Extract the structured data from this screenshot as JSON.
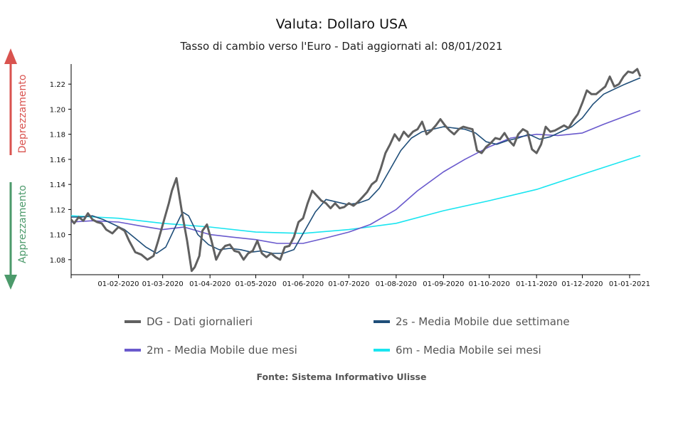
{
  "chart_data": {
    "type": "line",
    "title": "Valuta: Dollaro USA",
    "subtitle": "Tasso di cambio verso l'Euro - Dati aggiornati al: 08/01/2021",
    "source": "Fonte: Sistema Informativo Ulisse",
    "side_labels": {
      "up": "Deprezzamento",
      "down": "Apprezzamento",
      "up_color": "#d9534f",
      "down_color": "#4c9a6b"
    },
    "xlim": [
      "2020-01-01",
      "2021-01-08"
    ],
    "ylim": [
      1.068,
      1.236
    ],
    "x_ticks": [
      {
        "date": "2020-02-01",
        "label": "01-02-2020"
      },
      {
        "date": "2020-03-01",
        "label": "01-03-2020"
      },
      {
        "date": "2020-04-01",
        "label": "01-04-2020"
      },
      {
        "date": "2020-05-01",
        "label": "01-05-2020"
      },
      {
        "date": "2020-06-01",
        "label": "01-06-2020"
      },
      {
        "date": "2020-07-01",
        "label": "01-07-2020"
      },
      {
        "date": "2020-08-01",
        "label": "01-08-2020"
      },
      {
        "date": "2020-09-01",
        "label": "01-09-2020"
      },
      {
        "date": "2020-10-01",
        "label": "01-10-2020"
      },
      {
        "date": "2020-11-01",
        "label": "01-11-2020"
      },
      {
        "date": "2020-12-01",
        "label": "01-12-2020"
      },
      {
        "date": "2021-01-01",
        "label": "01-01-2021"
      }
    ],
    "y_ticks": [
      {
        "value": 1.08,
        "label": "1.08"
      },
      {
        "value": 1.1,
        "label": "1.10"
      },
      {
        "value": 1.12,
        "label": "1.12"
      },
      {
        "value": 1.14,
        "label": "1.14"
      },
      {
        "value": 1.16,
        "label": "1.16"
      },
      {
        "value": 1.18,
        "label": "1.18"
      },
      {
        "value": 1.2,
        "label": "1.20"
      },
      {
        "value": 1.22,
        "label": "1.22"
      }
    ],
    "series": [
      {
        "name": "DG - Dati giornalieri",
        "color": "#606060",
        "points": [
          [
            "2020-01-01",
            1.112
          ],
          [
            "2020-01-03",
            1.109
          ],
          [
            "2020-01-06",
            1.114
          ],
          [
            "2020-01-09",
            1.111
          ],
          [
            "2020-01-12",
            1.117
          ],
          [
            "2020-01-15",
            1.112
          ],
          [
            "2020-01-18",
            1.11
          ],
          [
            "2020-01-21",
            1.109
          ],
          [
            "2020-01-24",
            1.104
          ],
          [
            "2020-01-28",
            1.101
          ],
          [
            "2020-02-01",
            1.106
          ],
          [
            "2020-02-05",
            1.103
          ],
          [
            "2020-02-08",
            1.095
          ],
          [
            "2020-02-12",
            1.086
          ],
          [
            "2020-02-16",
            1.084
          ],
          [
            "2020-02-20",
            1.08
          ],
          [
            "2020-02-24",
            1.083
          ],
          [
            "2020-02-27",
            1.095
          ],
          [
            "2020-03-02",
            1.112
          ],
          [
            "2020-03-05",
            1.125
          ],
          [
            "2020-03-07",
            1.135
          ],
          [
            "2020-03-10",
            1.145
          ],
          [
            "2020-03-12",
            1.13
          ],
          [
            "2020-03-14",
            1.115
          ],
          [
            "2020-03-17",
            1.095
          ],
          [
            "2020-03-20",
            1.071
          ],
          [
            "2020-03-22",
            1.074
          ],
          [
            "2020-03-25",
            1.083
          ],
          [
            "2020-03-27",
            1.103
          ],
          [
            "2020-03-30",
            1.108
          ],
          [
            "2020-04-02",
            1.095
          ],
          [
            "2020-04-05",
            1.08
          ],
          [
            "2020-04-08",
            1.087
          ],
          [
            "2020-04-11",
            1.091
          ],
          [
            "2020-04-14",
            1.092
          ],
          [
            "2020-04-17",
            1.087
          ],
          [
            "2020-04-20",
            1.086
          ],
          [
            "2020-04-23",
            1.08
          ],
          [
            "2020-04-26",
            1.085
          ],
          [
            "2020-04-29",
            1.087
          ],
          [
            "2020-05-02",
            1.095
          ],
          [
            "2020-05-05",
            1.085
          ],
          [
            "2020-05-08",
            1.082
          ],
          [
            "2020-05-11",
            1.085
          ],
          [
            "2020-05-14",
            1.082
          ],
          [
            "2020-05-17",
            1.08
          ],
          [
            "2020-05-20",
            1.09
          ],
          [
            "2020-05-23",
            1.091
          ],
          [
            "2020-05-26",
            1.098
          ],
          [
            "2020-05-29",
            1.11
          ],
          [
            "2020-06-01",
            1.113
          ],
          [
            "2020-06-04",
            1.125
          ],
          [
            "2020-06-07",
            1.135
          ],
          [
            "2020-06-10",
            1.131
          ],
          [
            "2020-06-13",
            1.127
          ],
          [
            "2020-06-16",
            1.125
          ],
          [
            "2020-06-19",
            1.121
          ],
          [
            "2020-06-22",
            1.125
          ],
          [
            "2020-06-25",
            1.121
          ],
          [
            "2020-06-28",
            1.122
          ],
          [
            "2020-07-01",
            1.125
          ],
          [
            "2020-07-04",
            1.123
          ],
          [
            "2020-07-07",
            1.126
          ],
          [
            "2020-07-10",
            1.13
          ],
          [
            "2020-07-13",
            1.134
          ],
          [
            "2020-07-16",
            1.14
          ],
          [
            "2020-07-19",
            1.143
          ],
          [
            "2020-07-22",
            1.153
          ],
          [
            "2020-07-25",
            1.165
          ],
          [
            "2020-07-28",
            1.172
          ],
          [
            "2020-07-31",
            1.18
          ],
          [
            "2020-08-03",
            1.175
          ],
          [
            "2020-08-06",
            1.182
          ],
          [
            "2020-08-09",
            1.178
          ],
          [
            "2020-08-12",
            1.182
          ],
          [
            "2020-08-15",
            1.184
          ],
          [
            "2020-08-18",
            1.19
          ],
          [
            "2020-08-21",
            1.18
          ],
          [
            "2020-08-24",
            1.183
          ],
          [
            "2020-08-27",
            1.187
          ],
          [
            "2020-08-30",
            1.192
          ],
          [
            "2020-09-02",
            1.187
          ],
          [
            "2020-09-05",
            1.183
          ],
          [
            "2020-09-08",
            1.18
          ],
          [
            "2020-09-11",
            1.184
          ],
          [
            "2020-09-14",
            1.186
          ],
          [
            "2020-09-17",
            1.185
          ],
          [
            "2020-09-20",
            1.184
          ],
          [
            "2020-09-23",
            1.167
          ],
          [
            "2020-09-26",
            1.165
          ],
          [
            "2020-09-29",
            1.17
          ],
          [
            "2020-10-02",
            1.173
          ],
          [
            "2020-10-05",
            1.177
          ],
          [
            "2020-10-08",
            1.176
          ],
          [
            "2020-10-11",
            1.181
          ],
          [
            "2020-10-14",
            1.175
          ],
          [
            "2020-10-17",
            1.171
          ],
          [
            "2020-10-20",
            1.18
          ],
          [
            "2020-10-23",
            1.184
          ],
          [
            "2020-10-26",
            1.182
          ],
          [
            "2020-10-29",
            1.168
          ],
          [
            "2020-11-01",
            1.165
          ],
          [
            "2020-11-04",
            1.172
          ],
          [
            "2020-11-07",
            1.186
          ],
          [
            "2020-11-10",
            1.182
          ],
          [
            "2020-11-13",
            1.183
          ],
          [
            "2020-11-16",
            1.185
          ],
          [
            "2020-11-19",
            1.187
          ],
          [
            "2020-11-22",
            1.185
          ],
          [
            "2020-11-25",
            1.191
          ],
          [
            "2020-11-28",
            1.196
          ],
          [
            "2020-12-01",
            1.205
          ],
          [
            "2020-12-04",
            1.215
          ],
          [
            "2020-12-07",
            1.212
          ],
          [
            "2020-12-10",
            1.212
          ],
          [
            "2020-12-13",
            1.215
          ],
          [
            "2020-12-16",
            1.218
          ],
          [
            "2020-12-19",
            1.226
          ],
          [
            "2020-12-22",
            1.218
          ],
          [
            "2020-12-25",
            1.22
          ],
          [
            "2020-12-28",
            1.226
          ],
          [
            "2020-12-31",
            1.23
          ],
          [
            "2021-01-03",
            1.229
          ],
          [
            "2021-01-06",
            1.232
          ],
          [
            "2021-01-08",
            1.226
          ]
        ]
      },
      {
        "name": "2s - Media Mobile due settimane",
        "color": "#1f4e79",
        "points": [
          [
            "2020-01-01",
            1.114
          ],
          [
            "2020-01-08",
            1.114
          ],
          [
            "2020-01-15",
            1.115
          ],
          [
            "2020-01-22",
            1.112
          ],
          [
            "2020-01-29",
            1.108
          ],
          [
            "2020-02-05",
            1.104
          ],
          [
            "2020-02-12",
            1.097
          ],
          [
            "2020-02-19",
            1.09
          ],
          [
            "2020-02-26",
            1.085
          ],
          [
            "2020-03-03",
            1.09
          ],
          [
            "2020-03-10",
            1.108
          ],
          [
            "2020-03-14",
            1.118
          ],
          [
            "2020-03-18",
            1.115
          ],
          [
            "2020-03-24",
            1.1
          ],
          [
            "2020-03-31",
            1.092
          ],
          [
            "2020-04-07",
            1.088
          ],
          [
            "2020-04-14",
            1.089
          ],
          [
            "2020-04-21",
            1.088
          ],
          [
            "2020-04-28",
            1.086
          ],
          [
            "2020-05-05",
            1.087
          ],
          [
            "2020-05-12",
            1.085
          ],
          [
            "2020-05-19",
            1.085
          ],
          [
            "2020-05-26",
            1.088
          ],
          [
            "2020-06-02",
            1.103
          ],
          [
            "2020-06-09",
            1.118
          ],
          [
            "2020-06-16",
            1.128
          ],
          [
            "2020-06-23",
            1.126
          ],
          [
            "2020-06-30",
            1.124
          ],
          [
            "2020-07-07",
            1.125
          ],
          [
            "2020-07-14",
            1.128
          ],
          [
            "2020-07-21",
            1.137
          ],
          [
            "2020-07-28",
            1.152
          ],
          [
            "2020-08-04",
            1.167
          ],
          [
            "2020-08-11",
            1.177
          ],
          [
            "2020-08-18",
            1.182
          ],
          [
            "2020-08-25",
            1.184
          ],
          [
            "2020-09-01",
            1.186
          ],
          [
            "2020-09-08",
            1.185
          ],
          [
            "2020-09-15",
            1.184
          ],
          [
            "2020-09-22",
            1.181
          ],
          [
            "2020-09-29",
            1.174
          ],
          [
            "2020-10-06",
            1.172
          ],
          [
            "2020-10-13",
            1.175
          ],
          [
            "2020-10-20",
            1.177
          ],
          [
            "2020-10-27",
            1.18
          ],
          [
            "2020-11-03",
            1.176
          ],
          [
            "2020-11-10",
            1.178
          ],
          [
            "2020-11-17",
            1.182
          ],
          [
            "2020-11-24",
            1.186
          ],
          [
            "2020-12-01",
            1.193
          ],
          [
            "2020-12-08",
            1.204
          ],
          [
            "2020-12-15",
            1.212
          ],
          [
            "2020-12-22",
            1.216
          ],
          [
            "2020-12-29",
            1.22
          ],
          [
            "2021-01-08",
            1.225
          ]
        ]
      },
      {
        "name": "2m - Media Mobile due mesi",
        "color": "#6a5acd",
        "points": [
          [
            "2020-01-01",
            1.11
          ],
          [
            "2020-01-15",
            1.111
          ],
          [
            "2020-02-01",
            1.11
          ],
          [
            "2020-02-15",
            1.107
          ],
          [
            "2020-03-01",
            1.104
          ],
          [
            "2020-03-15",
            1.106
          ],
          [
            "2020-04-01",
            1.1
          ],
          [
            "2020-04-15",
            1.098
          ],
          [
            "2020-05-01",
            1.096
          ],
          [
            "2020-05-15",
            1.093
          ],
          [
            "2020-06-01",
            1.093
          ],
          [
            "2020-06-15",
            1.097
          ],
          [
            "2020-07-01",
            1.102
          ],
          [
            "2020-07-15",
            1.108
          ],
          [
            "2020-08-01",
            1.12
          ],
          [
            "2020-08-15",
            1.135
          ],
          [
            "2020-09-01",
            1.15
          ],
          [
            "2020-09-15",
            1.16
          ],
          [
            "2020-10-01",
            1.17
          ],
          [
            "2020-10-15",
            1.177
          ],
          [
            "2020-11-01",
            1.18
          ],
          [
            "2020-11-15",
            1.179
          ],
          [
            "2020-12-01",
            1.181
          ],
          [
            "2020-12-15",
            1.188
          ],
          [
            "2021-01-08",
            1.199
          ]
        ]
      },
      {
        "name": "6m - Media Mobile sei mesi",
        "color": "#1ae5f0",
        "points": [
          [
            "2020-01-01",
            1.115
          ],
          [
            "2020-02-01",
            1.113
          ],
          [
            "2020-03-01",
            1.109
          ],
          [
            "2020-04-01",
            1.106
          ],
          [
            "2020-05-01",
            1.102
          ],
          [
            "2020-06-01",
            1.101
          ],
          [
            "2020-07-01",
            1.104
          ],
          [
            "2020-08-01",
            1.109
          ],
          [
            "2020-09-01",
            1.119
          ],
          [
            "2020-10-01",
            1.127
          ],
          [
            "2020-11-01",
            1.136
          ],
          [
            "2020-12-01",
            1.148
          ],
          [
            "2021-01-08",
            1.163
          ]
        ]
      }
    ]
  }
}
